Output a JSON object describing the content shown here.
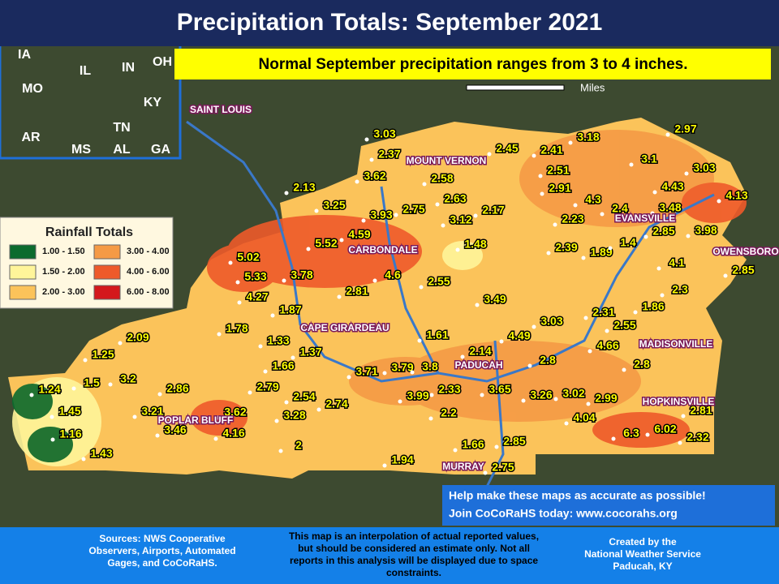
{
  "header": {
    "title": "Precipitation Totals: September 2021",
    "subtitle": "Normal September precipitation ranges from 3 to 4 inches."
  },
  "inset": {
    "states": [
      "IA",
      "IL",
      "IN",
      "OH",
      "MO",
      "KY",
      "AR",
      "TN",
      "MS",
      "AL",
      "GA"
    ]
  },
  "scale_label": "Miles",
  "legend": {
    "title": "Rainfall Totals",
    "entries": [
      {
        "label": "1.00 - 1.50",
        "color": "#0b6b2e"
      },
      {
        "label": "1.50 - 2.00",
        "color": "#fff59a"
      },
      {
        "label": "2.00 - 3.00",
        "color": "#fbc35a"
      },
      {
        "label": "3.00 - 4.00",
        "color": "#f59a45"
      },
      {
        "label": "4.00 - 6.00",
        "color": "#ee5a2a"
      },
      {
        "label": "6.00 - 8.00",
        "color": "#d4181c"
      }
    ]
  },
  "cities": [
    "SAINT LOUIS",
    "MOUNT VERNON",
    "EVANSVILLE",
    "CARBONDALE",
    "OWENSBORO",
    "CAPE GIRARDEAU",
    "MADISONVILLE",
    "PADUCAH",
    "HOPKINSVILLE",
    "POPLAR BLUFF",
    "MURRAY"
  ],
  "stations": [
    3.03,
    2.37,
    3.62,
    2.58,
    2.45,
    2.41,
    3.18,
    2.97,
    3.1,
    3.03,
    2.51,
    2.91,
    4.43,
    4.13,
    2.13,
    3.25,
    2.75,
    2.63,
    3.12,
    2.17,
    3.93,
    4.3,
    2.4,
    3.48,
    2.23,
    2.85,
    3.98,
    4.59,
    5.52,
    1.48,
    2.39,
    1.89,
    1.4,
    4.1,
    2.85,
    5.02,
    5.33,
    3.78,
    4.6,
    2.81,
    2.55,
    2.3,
    4.27,
    1.87,
    3.49,
    2.31,
    1.86,
    1.78,
    3.03,
    2.55,
    1.33,
    1.37,
    4.49,
    1.61,
    4.66,
    2.09,
    1.25,
    1.66,
    2.14,
    2.8,
    2.8,
    3.71,
    3.79,
    3.8,
    1.24,
    1.5,
    3.2,
    2.86,
    2.79,
    2.54,
    2.33,
    3.65,
    3.99,
    3.26,
    3.02,
    2.99,
    1.45,
    3.21,
    3.62,
    2.74,
    3.28,
    2.2,
    4.04,
    2.81,
    1.16,
    3.46,
    4.16,
    6.02,
    6.3,
    2.32,
    1.43,
    2,
    1.66,
    2.85,
    1.94,
    2.75
  ],
  "help": [
    "Help make these maps as accurate as possible!",
    "Join CoCoRaHS today: www.cocorahs.org"
  ],
  "footer": {
    "sources": [
      "Sources: NWS Cooperative",
      "Observers, Airports, Automated",
      "Gages, and CoCoRaHS."
    ],
    "note": [
      "This map is an interpolation of actual reported values,",
      "but should be considered an estimate only. Not all",
      "reports in this analysis will be displayed due to space",
      "constraints."
    ],
    "credit": [
      "Created by the",
      "National Weather Service",
      "Paducah, KY"
    ]
  }
}
